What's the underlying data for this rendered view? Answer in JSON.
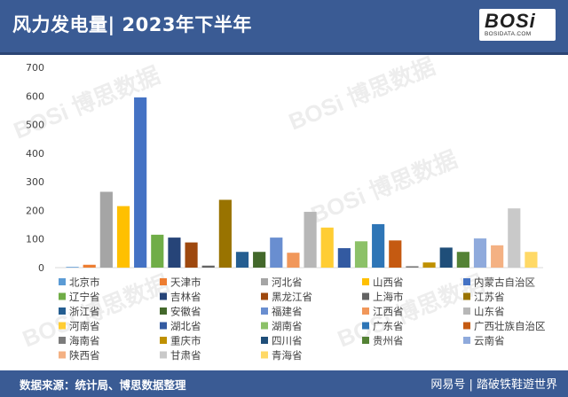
{
  "header": {
    "title": "风力发电量| 2023年下半年",
    "logo_text": "BOSi",
    "logo_subtext": "BOSIDATA.COM"
  },
  "footer": {
    "source": "数据来源：统计局、博思数据整理",
    "brand": "网易号 | 踏破铁鞋遊世界"
  },
  "watermark_text": "BOSi 博思数据",
  "chart_data": {
    "type": "bar",
    "title": "风力发电量| 2023年下半年",
    "xlabel": "",
    "ylabel": "",
    "ylim": [
      0,
      700
    ],
    "yticks": [
      0,
      100,
      200,
      300,
      400,
      500,
      600,
      700
    ],
    "grid": false,
    "legend_position": "bottom",
    "categories": [
      "北京市",
      "天津市",
      "河北省",
      "山西省",
      "内蒙古自治区",
      "辽宁省",
      "吉林省",
      "黑龙江省",
      "上海市",
      "江苏省",
      "浙江省",
      "安徽省",
      "福建省",
      "江西省",
      "山东省",
      "河南省",
      "湖北省",
      "湖南省",
      "广东省",
      "广西壮族自治区",
      "海南省",
      "重庆市",
      "四川省",
      "贵州省",
      "云南省",
      "陕西省",
      "甘肃省",
      "青海省"
    ],
    "values": [
      2,
      10,
      265,
      215,
      595,
      115,
      105,
      88,
      7,
      237,
      55,
      55,
      105,
      52,
      195,
      140,
      68,
      92,
      152,
      95,
      5,
      18,
      70,
      55,
      102,
      78,
      207,
      55
    ],
    "colors": [
      "#5b9bd5",
      "#ed7d31",
      "#a5a5a5",
      "#ffc000",
      "#4472c4",
      "#70ad47",
      "#264478",
      "#9e480e",
      "#636363",
      "#997300",
      "#255e91",
      "#43682b",
      "#698ed0",
      "#f1975a",
      "#b7b7b7",
      "#ffcd33",
      "#335aa1",
      "#8cc168",
      "#2e75b6",
      "#c55a11",
      "#7b7b7b",
      "#bf9000",
      "#1f4e79",
      "#548235",
      "#8faadc",
      "#f4b183",
      "#c9c9c9",
      "#ffd966"
    ]
  }
}
